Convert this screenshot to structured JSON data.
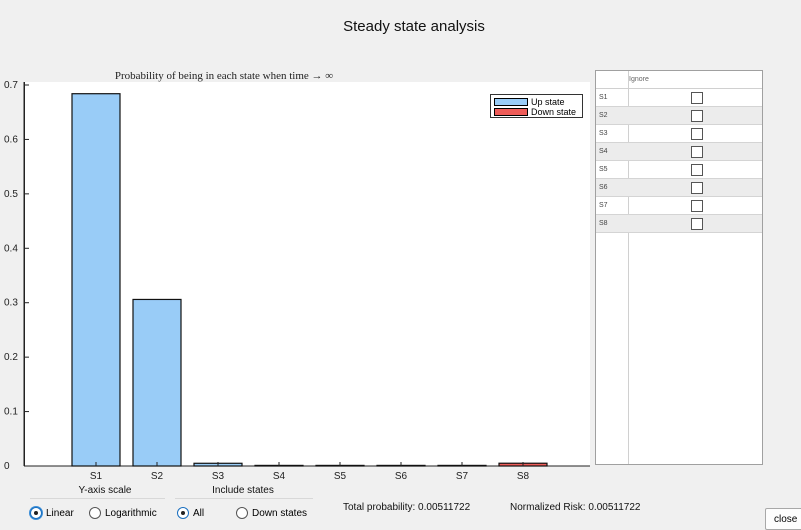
{
  "window": {
    "title": "Steady state analysis"
  },
  "chart_data": {
    "type": "bar",
    "title": "Probability of being in each state when time → ∞",
    "categories": [
      "S1",
      "S2",
      "S3",
      "S4",
      "S5",
      "S6",
      "S7",
      "S8"
    ],
    "values": [
      0.684,
      0.306,
      0.005,
      0.0001,
      0.0001,
      0.0001,
      0.0001,
      0.0051
    ],
    "bar_types": [
      "up",
      "up",
      "up",
      "up",
      "up",
      "up",
      "up",
      "down"
    ],
    "ylim": [
      0,
      0.7
    ],
    "yticks": [
      0,
      0.1,
      0.2,
      0.3,
      0.4,
      0.5,
      0.6,
      0.7
    ],
    "ytick_labels": [
      "0",
      "0.1",
      "0.2",
      "0.3",
      "0.4",
      "0.5",
      "0.6",
      "0.7"
    ],
    "grid": false,
    "legend_position": "top-right",
    "legend": [
      {
        "label": "Up state",
        "color": "#99ccf7"
      },
      {
        "label": "Down state",
        "color": "#ee5c58"
      }
    ],
    "colors": {
      "up": "#99ccf7",
      "down": "#ee5c58",
      "edge": "#111111"
    }
  },
  "table": {
    "column_header": "Ignore",
    "rows": [
      {
        "label": "S1",
        "checked": false
      },
      {
        "label": "S2",
        "checked": false
      },
      {
        "label": "S3",
        "checked": false
      },
      {
        "label": "S4",
        "checked": false
      },
      {
        "label": "S5",
        "checked": false
      },
      {
        "label": "S6",
        "checked": false
      },
      {
        "label": "S7",
        "checked": false
      },
      {
        "label": "S8",
        "checked": false
      }
    ]
  },
  "controls": {
    "yaxis_scale": {
      "label": "Y-axis scale",
      "options": [
        "Linear",
        "Logarithmic"
      ],
      "selected": "Linear"
    },
    "include_states": {
      "label": "Include states",
      "options": [
        "All",
        "Down states"
      ],
      "selected": "All"
    }
  },
  "status": {
    "total_probability": "Total probability: 0.00511722",
    "normalized_risk": "Normalized Risk: 0.00511722"
  },
  "buttons": {
    "close": "close"
  }
}
